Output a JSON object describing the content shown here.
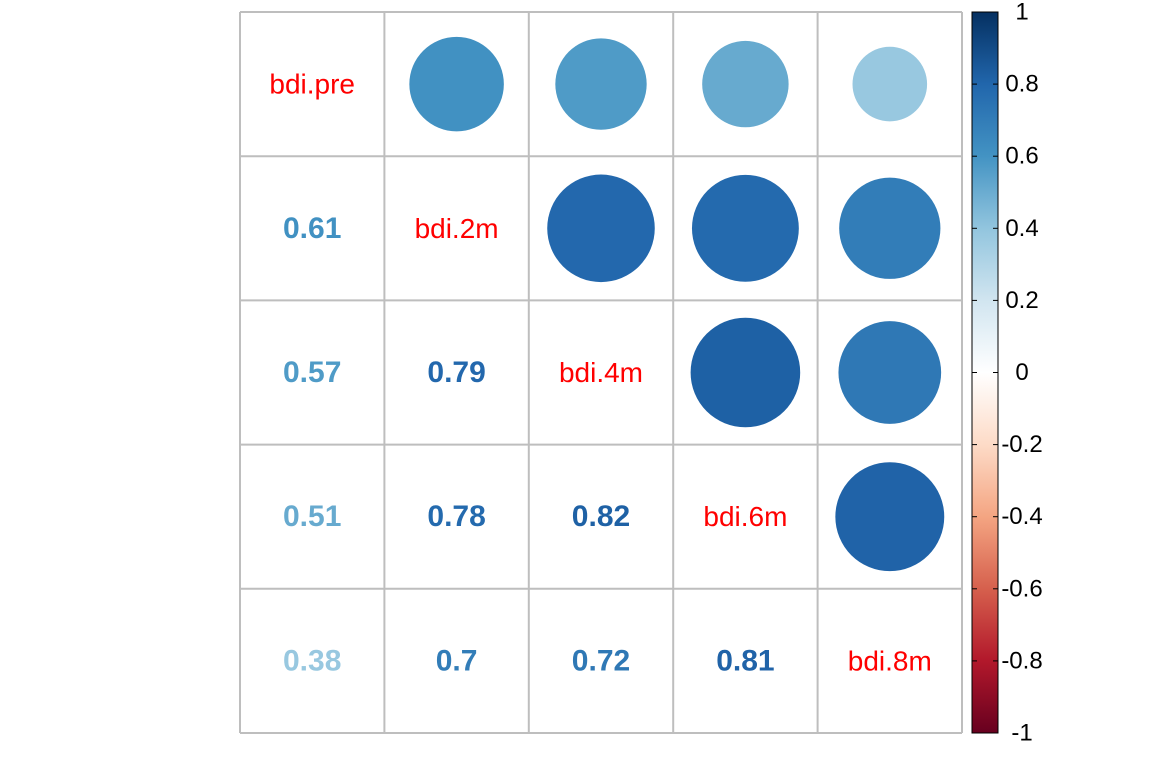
{
  "chart_data": {
    "type": "heatmap",
    "title": "",
    "variables": [
      "bdi.pre",
      "bdi.2m",
      "bdi.4m",
      "bdi.6m",
      "bdi.8m"
    ],
    "correlation_matrix": [
      [
        1.0,
        0.61,
        0.57,
        0.51,
        0.38
      ],
      [
        0.61,
        1.0,
        0.79,
        0.78,
        0.7
      ],
      [
        0.57,
        0.79,
        1.0,
        0.82,
        0.72
      ],
      [
        0.51,
        0.78,
        0.82,
        1.0,
        0.81
      ],
      [
        0.38,
        0.7,
        0.72,
        0.81,
        1.0
      ]
    ],
    "lower_triangle": {
      "method": "number",
      "labels": [
        [
          "0.61"
        ],
        [
          "0.57",
          "0.79"
        ],
        [
          "0.51",
          "0.78",
          "0.82"
        ],
        [
          "0.38",
          "0.7",
          "0.72",
          "0.81"
        ]
      ]
    },
    "upper_triangle": {
      "method": "circle"
    },
    "diagonal": {
      "shows": "variable names"
    },
    "colorbar": {
      "range": [
        -1,
        1
      ],
      "ticks": [
        "1",
        "0.8",
        "0.6",
        "0.4",
        "0.2",
        "0",
        "-0.2",
        "-0.4",
        "-0.6",
        "-0.8",
        "-1"
      ],
      "position": "right"
    },
    "colors": {
      "diagonal_label": "#FF0000",
      "grid": "#BEBEBE",
      "palette": [
        "#67001F",
        "#B2182B",
        "#D6604D",
        "#F4A582",
        "#FDDBC7",
        "#FFFFFF",
        "#D1E5F0",
        "#92C5DE",
        "#4393C3",
        "#2166AC",
        "#053061"
      ]
    },
    "grid": true,
    "legend": "right"
  }
}
